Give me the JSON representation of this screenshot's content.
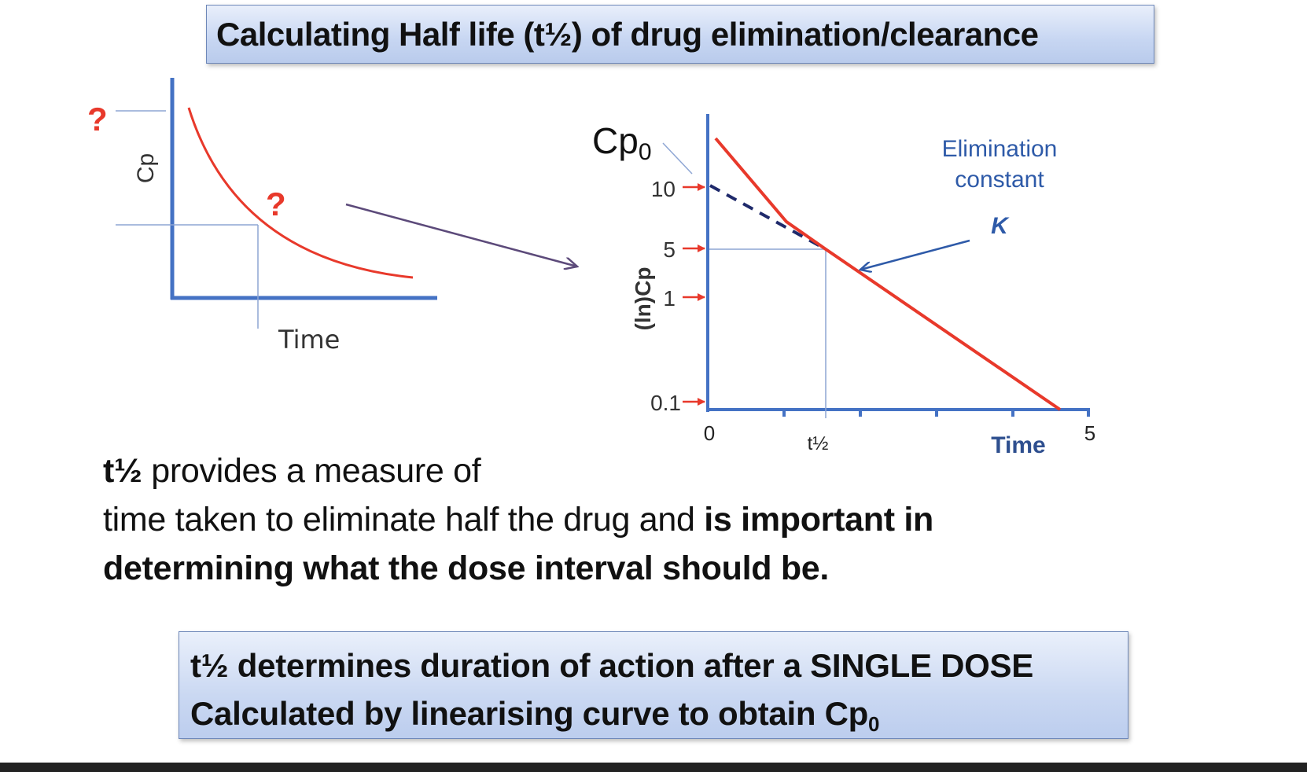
{
  "title": "Calculating Half life (t½) of drug elimination/clearance",
  "left_graph": {
    "y_label": "Cp",
    "x_label": "Time",
    "unknown_marks": [
      "?",
      "?"
    ]
  },
  "right_graph": {
    "cp0_label": "Cp",
    "cp0_subscript": "0",
    "y_label": "(ln)Cp",
    "y_ticks": [
      "10",
      "5",
      "1",
      "0.1"
    ],
    "x_ticks": [
      "0",
      "t½",
      "5"
    ],
    "x_label": "Time",
    "annotation_line1": "Elimination",
    "annotation_line2": "constant",
    "annotation_symbol": "K"
  },
  "paragraph": {
    "lead_bold": "t½",
    "line1_rest": " provides a measure of",
    "line2_normal": "time taken to eliminate half the drug and ",
    "line2_bold": "is important in",
    "line3_bold": "determining what the dose interval should be."
  },
  "bottom_box": {
    "line1": "t½  determines duration of action after a SINGLE DOSE",
    "line2": "Calculated by linearising curve to obtain Cp",
    "line2_subscript": "0"
  },
  "colors": {
    "axis_blue": "#4472c4",
    "curve_red": "#e8392b",
    "dashed_navy": "#1f2a6b",
    "arrow_purple": "#5c4a7a",
    "annotation_blue": "#2e5aa8"
  }
}
